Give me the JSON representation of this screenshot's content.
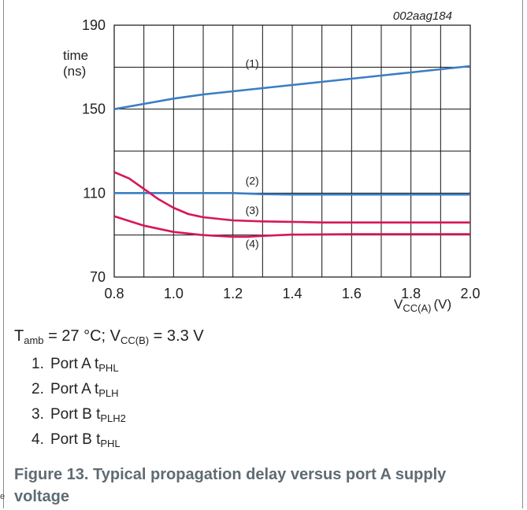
{
  "chart_data": {
    "type": "line",
    "code": "002aag184",
    "ylabel": [
      "time",
      "(ns)"
    ],
    "xlabel": {
      "main": "V",
      "sub": "CC(A)",
      "unit": "(V)"
    },
    "xlim": [
      0.8,
      2.0
    ],
    "ylim": [
      70,
      190
    ],
    "xticks": [
      "0.8",
      "1.0",
      "1.2",
      "1.4",
      "1.6",
      "1.8",
      "2.0"
    ],
    "yticks": [
      "190",
      "150",
      "110",
      "70"
    ],
    "grid": true,
    "series": [
      {
        "name": "(1)",
        "color": "#3b7dc4",
        "x": [
          0.8,
          0.9,
          1.0,
          1.1,
          1.2,
          1.3,
          1.4,
          1.5,
          1.6,
          1.7,
          1.8,
          1.9,
          2.0
        ],
        "y": [
          150,
          152.5,
          155,
          157,
          158.5,
          160,
          161.5,
          163,
          164.5,
          166,
          167.5,
          169,
          170.5
        ]
      },
      {
        "name": "(2)",
        "color": "#3b7dc4",
        "x": [
          0.8,
          1.0,
          1.2,
          1.3,
          1.4,
          1.6,
          1.8,
          2.0
        ],
        "y": [
          110,
          110,
          110,
          109.5,
          109.3,
          109.3,
          109.3,
          109.3
        ]
      },
      {
        "name": "(3)",
        "color": "#d6175a",
        "x": [
          0.8,
          0.85,
          0.9,
          0.95,
          1.0,
          1.05,
          1.1,
          1.2,
          1.3,
          1.4,
          1.5,
          1.6,
          1.8,
          2.0
        ],
        "y": [
          120,
          117,
          112,
          107,
          103,
          100,
          98.5,
          97,
          96.5,
          96.3,
          96,
          96,
          96,
          96
        ]
      },
      {
        "name": "(4)",
        "color": "#d6175a",
        "x": [
          0.8,
          0.9,
          1.0,
          1.1,
          1.2,
          1.25,
          1.3,
          1.4,
          1.6,
          1.8,
          2.0
        ],
        "y": [
          99,
          94.5,
          91.5,
          90,
          89.2,
          89.2,
          89.6,
          90.2,
          90.4,
          90.4,
          90.4
        ]
      }
    ]
  },
  "conditions": {
    "t_main": "T",
    "t_sub": "amb",
    "t_rest": " = 27 °C; V",
    "v_sub": "CC(B)",
    "v_rest": " = 3.3 V"
  },
  "legend": [
    {
      "num": "1.",
      "text": "Port A t",
      "sub": "PHL"
    },
    {
      "num": "2.",
      "text": "Port A t",
      "sub": "PLH"
    },
    {
      "num": "3.",
      "text": "Port B t",
      "sub": "PLH2"
    },
    {
      "num": "4.",
      "text": "Port B t",
      "sub": "PHL"
    }
  ],
  "caption": "Figure 13.  Typical propagation delay versus port A supply voltage",
  "stray_char": "e"
}
